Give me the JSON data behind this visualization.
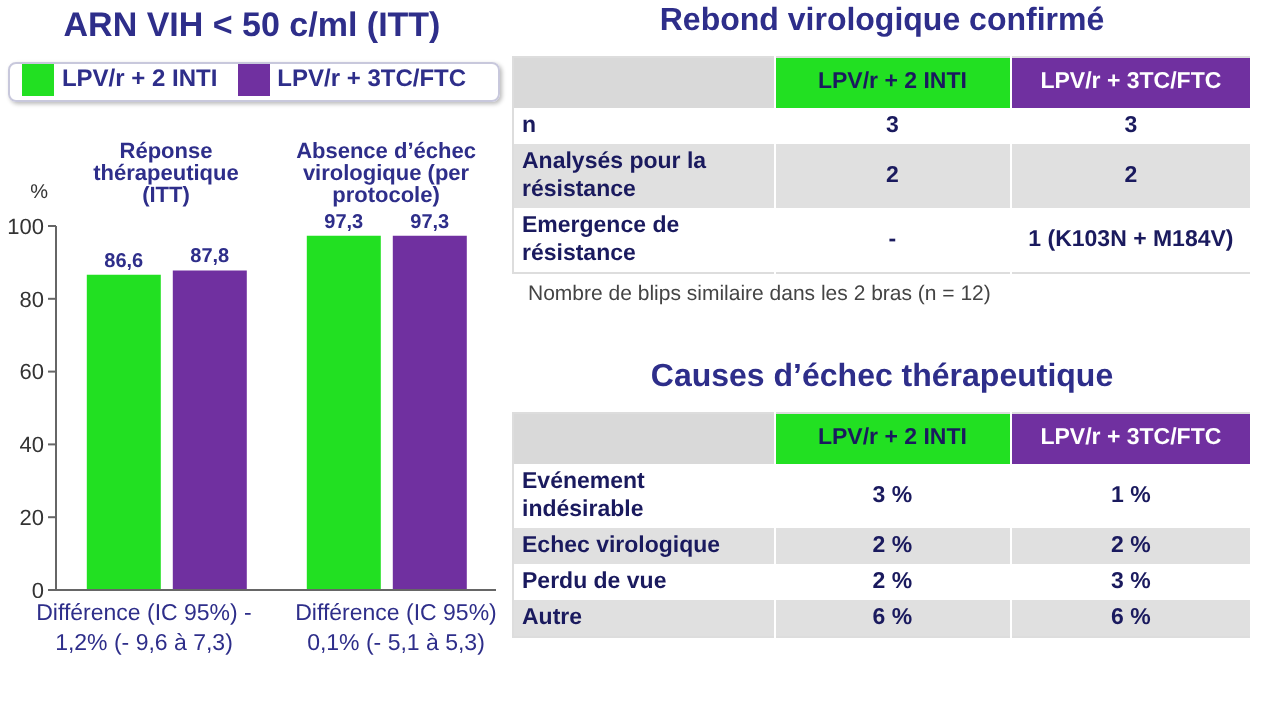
{
  "chart_data": [
    {
      "type": "bar",
      "title": "ARN VIH < 50 c/ml (ITT)",
      "categories": [
        "Réponse thérapeutique (ITT)",
        "Absence d’échec virologique (per protocole)"
      ],
      "series": [
        {
          "name": "LPV/r + 2 INTI",
          "color": "#22e022",
          "values": [
            86.6,
            97.3
          ],
          "value_labels": [
            "86,6",
            "97,3"
          ]
        },
        {
          "name": "LPV/r + 3TC/FTC",
          "color": "#7030a0",
          "values": [
            87.8,
            97.3
          ],
          "value_labels": [
            "87,8",
            "97,3"
          ]
        }
      ],
      "ylabel": "%",
      "ylim": [
        0,
        100
      ],
      "yticks": [
        0,
        20,
        40,
        60,
        80,
        100
      ],
      "grid": false,
      "legend": "top",
      "annotations": [
        "Différence (IC 95%) - 1,2% (- 9,6 à 7,3)",
        "Différence (IC 95%) 0,1% (- 5,1 à 5,3)"
      ]
    },
    {
      "type": "other",
      "title": "Rebond virologique confirmé",
      "categories": [
        "LPV/r + 2 INTI",
        "LPV/r + 3TC/FTC"
      ],
      "colors": [
        "#22e022",
        "#7030a0"
      ],
      "y_categories": [
        "n",
        "Analysés pour la résistance",
        "Emergence de résistance"
      ],
      "cell_labels": [
        [
          "3",
          "3"
        ],
        [
          "2",
          "2"
        ],
        [
          "-",
          "1 (K103N + M184V)"
        ]
      ],
      "annotations": [
        "Nombre de blips similaire dans les 2 bras (n = 12)"
      ]
    },
    {
      "type": "other",
      "title": "Causes d’échec thérapeutique",
      "categories": [
        "LPV/r + 2 INTI",
        "LPV/r + 3TC/FTC"
      ],
      "colors": [
        "#22e022",
        "#7030a0"
      ],
      "y_categories": [
        "Evénement indésirable",
        "Echec virologique",
        "Perdu de vue",
        "Autre"
      ],
      "cell_labels": [
        [
          "3 %",
          "1 %"
        ],
        [
          "2 %",
          "2 %"
        ],
        [
          "2 %",
          "3 %"
        ],
        [
          "6 %",
          "6 %"
        ]
      ]
    }
  ]
}
